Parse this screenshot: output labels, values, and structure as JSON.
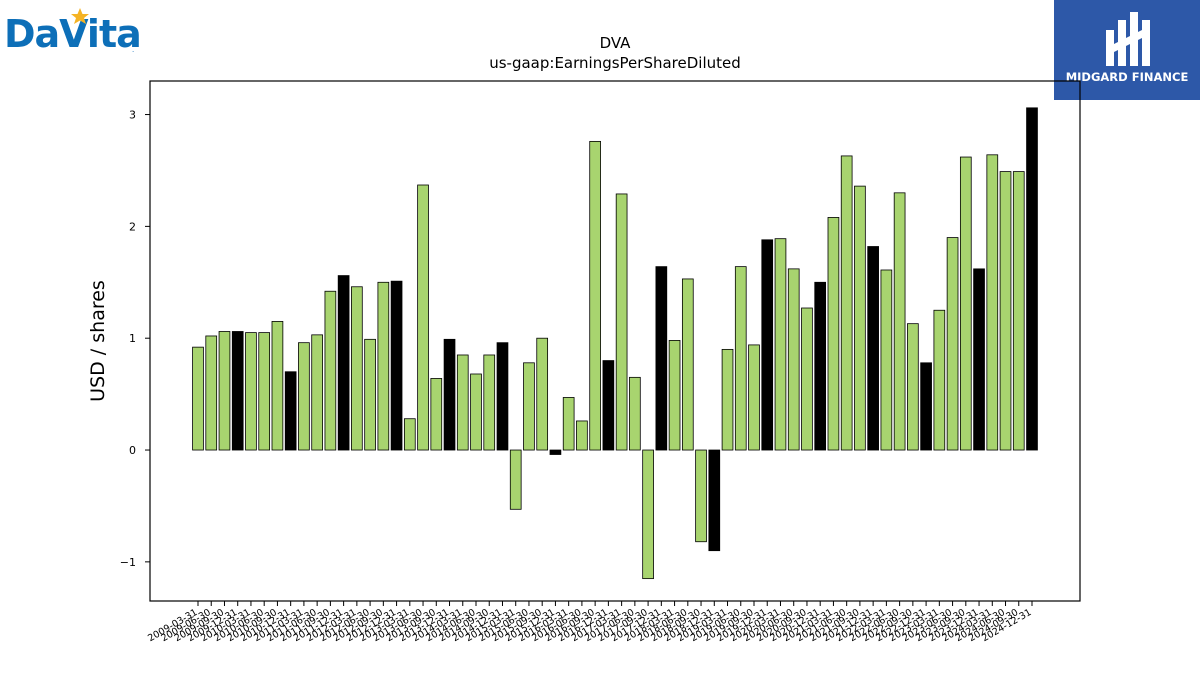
{
  "logos": {
    "left_text": "DaVita",
    "left_mark": ".",
    "right_text": "MIDGARD FINANCE"
  },
  "colors": {
    "primary": "#a8d46f",
    "highlight": "#000000"
  },
  "chart_data": {
    "type": "bar",
    "title": "DVA",
    "subtitle": "us-gaap:EarningsPerShareDiluted",
    "xlabel": "",
    "ylabel": "USD / shares",
    "ylim": [
      -1.35,
      3.3
    ],
    "yticks": [
      3,
      2,
      1,
      0,
      -1
    ],
    "ytick_labels": [
      "3",
      "2",
      "1",
      "0",
      "−1"
    ],
    "categories": [
      "2009-03-31",
      "2009-06-30",
      "2009-09-30",
      "2009-12-31",
      "2010-03-31",
      "2010-06-30",
      "2010-09-30",
      "2010-12-31",
      "2011-03-31",
      "2011-06-30",
      "2011-09-30",
      "2011-12-31",
      "2012-03-31",
      "2012-06-30",
      "2012-09-30",
      "2012-12-31",
      "2013-03-31",
      "2013-06-30",
      "2013-09-30",
      "2013-12-31",
      "2014-03-31",
      "2014-06-30",
      "2014-09-30",
      "2014-12-31",
      "2015-03-31",
      "2015-06-30",
      "2015-09-30",
      "2015-12-31",
      "2016-03-31",
      "2016-06-30",
      "2016-09-30",
      "2016-12-31",
      "2017-03-31",
      "2017-06-30",
      "2017-09-30",
      "2017-12-31",
      "2018-03-31",
      "2018-06-30",
      "2018-09-30",
      "2018-12-31",
      "2019-03-31",
      "2019-06-30",
      "2019-09-30",
      "2019-12-31",
      "2020-03-31",
      "2020-06-30",
      "2020-09-30",
      "2020-12-31",
      "2021-03-31",
      "2021-06-30",
      "2021-09-30",
      "2021-12-31",
      "2022-03-31",
      "2022-06-30",
      "2022-09-30",
      "2022-12-31",
      "2023-03-31",
      "2023-06-30",
      "2023-09-30",
      "2023-12-31",
      "2024-03-31",
      "2024-06-30",
      "2024-09-30",
      "2024-12-31"
    ],
    "tick_labels": [
      "2009-03-31",
      "2009-06-30",
      "2009-09-30",
      "2009-12-31",
      "2010-03-31",
      "2010-06-30",
      "2010-09-30",
      "2010-12-31",
      "2011-03-31",
      "2011-06-30",
      "2011-09-30",
      "2011-12-31",
      "2012-03-31",
      "2012-06-30",
      "2012-09-30",
      "2012-12-31",
      "2013-03-31",
      "2013-06-30",
      "2013-09-30",
      "2013-12-31",
      "2014-03-31",
      "2014-06-30",
      "2014-09-30",
      "2014-12-31",
      "2015-03-31",
      "2015-06-30",
      "2015-09-30",
      "2015-12-31",
      "2016-03-31",
      "2016-06-30",
      "2016-09-30",
      "2016-12-31",
      "2017-03-31",
      "2017-06-30",
      "2017-09-30",
      "2017-12-31",
      "2018-03-31",
      "2018-06-30",
      "2018-09-30",
      "2018-12-31",
      "2019-03-31",
      "2019-06-30",
      "2019-09-30",
      "2019-12-31",
      "2020-03-31",
      "2020-06-30",
      "2020-09-30",
      "2020-12-31",
      "2021-03-31",
      "2021-06-30",
      "2021-09-30",
      "2021-12-31",
      "2022-03-31",
      "2022-06-30",
      "2022-09-30",
      "2022-12-31",
      "2023-03-31",
      "2023-06-30",
      "2023-09-30",
      "2023-12-31",
      "2024-03-31",
      "2024-06-30",
      "2024-09-30",
      "2024-12-31"
    ],
    "values": [
      0.92,
      1.02,
      1.06,
      1.06,
      1.05,
      1.05,
      1.15,
      0.7,
      0.96,
      1.03,
      1.42,
      1.56,
      1.46,
      0.99,
      1.5,
      1.51,
      0.28,
      2.37,
      0.64,
      0.99,
      0.85,
      0.68,
      0.85,
      0.96,
      -0.53,
      0.78,
      1.0,
      -0.04,
      0.47,
      0.26,
      2.76,
      0.8,
      2.29,
      0.65,
      -1.15,
      1.64,
      0.98,
      1.53,
      -0.82,
      -0.9,
      0.9,
      1.64,
      0.94,
      1.88,
      1.89,
      1.62,
      1.27,
      1.5,
      2.08,
      2.63,
      2.36,
      1.82,
      1.61,
      2.3,
      1.13,
      0.78,
      1.25,
      1.9,
      2.62,
      1.62,
      2.64,
      2.49,
      2.49,
      3.06
    ],
    "highlighted": [
      false,
      false,
      false,
      true,
      false,
      false,
      false,
      true,
      false,
      false,
      false,
      true,
      false,
      false,
      false,
      true,
      false,
      false,
      false,
      true,
      false,
      false,
      false,
      true,
      false,
      false,
      false,
      true,
      false,
      false,
      false,
      true,
      false,
      false,
      false,
      true,
      false,
      false,
      false,
      true,
      false,
      false,
      false,
      true,
      false,
      false,
      false,
      true,
      false,
      false,
      false,
      true,
      false,
      false,
      false,
      true,
      false,
      false,
      false,
      true,
      false,
      false,
      false,
      true
    ],
    "grid": false,
    "legend": "none"
  }
}
